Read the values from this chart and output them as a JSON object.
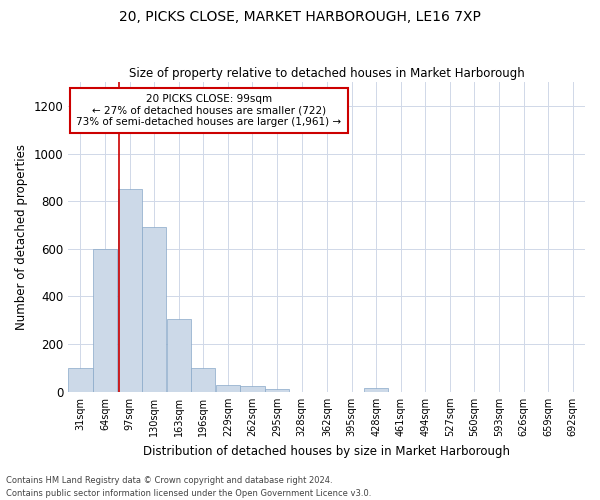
{
  "title": "20, PICKS CLOSE, MARKET HARBOROUGH, LE16 7XP",
  "subtitle": "Size of property relative to detached houses in Market Harborough",
  "xlabel": "Distribution of detached houses by size in Market Harborough",
  "ylabel": "Number of detached properties",
  "footer_line1": "Contains HM Land Registry data © Crown copyright and database right 2024.",
  "footer_line2": "Contains public sector information licensed under the Open Government Licence v3.0.",
  "bar_color": "#ccd9e8",
  "bar_edge_color": "#88a8c8",
  "grid_color": "#d0d8e8",
  "annotation_box_color": "#cc0000",
  "vline_color": "#cc0000",
  "annotation_text_line1": "20 PICKS CLOSE: 99sqm",
  "annotation_text_line2": "← 27% of detached houses are smaller (722)",
  "annotation_text_line3": "73% of semi-detached houses are larger (1,961) →",
  "property_size_sqm": 99,
  "bin_edges": [
    31,
    64,
    97,
    130,
    163,
    196,
    229,
    262,
    295,
    328,
    362,
    395,
    428,
    461,
    494,
    527,
    560,
    593,
    626,
    659,
    692
  ],
  "bar_heights": [
    100,
    600,
    850,
    690,
    305,
    100,
    30,
    25,
    10,
    0,
    0,
    0,
    15,
    0,
    0,
    0,
    0,
    0,
    0,
    0
  ],
  "ylim": [
    0,
    1300
  ],
  "yticks": [
    0,
    200,
    400,
    600,
    800,
    1000,
    1200
  ]
}
